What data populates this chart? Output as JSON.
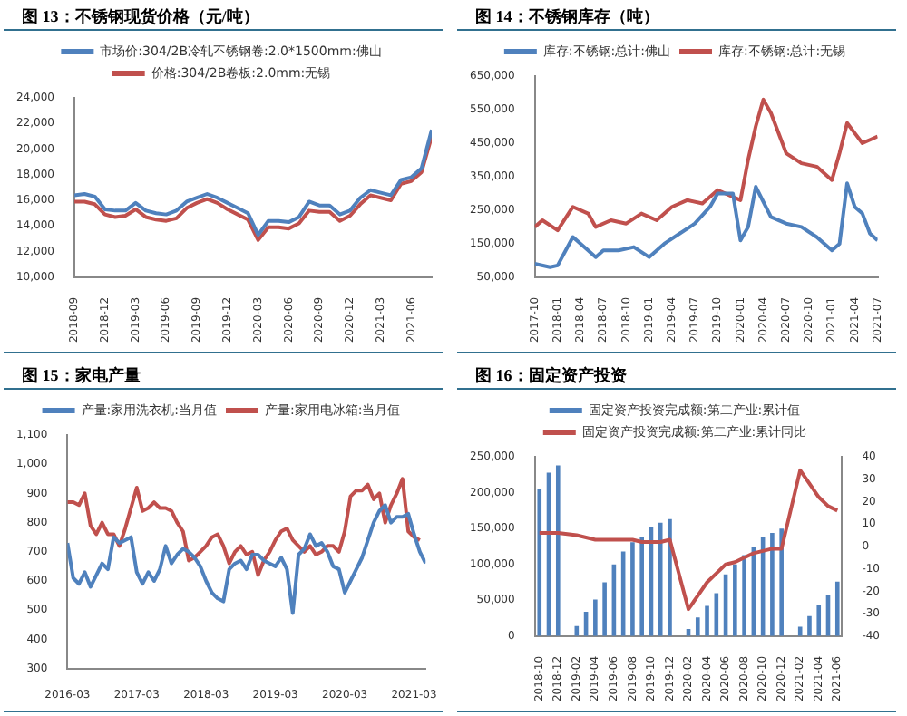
{
  "chart_data": [
    {
      "type": "line",
      "title": "图 13：不锈钢现货价格（元/吨）",
      "x": [
        "2018-09",
        "2018-10",
        "2018-11",
        "2018-12",
        "2019-01",
        "2019-02",
        "2019-03",
        "2019-04",
        "2019-05",
        "2019-06",
        "2019-07",
        "2019-08",
        "2019-09",
        "2019-10",
        "2019-11",
        "2019-12",
        "2020-01",
        "2020-02",
        "2020-03",
        "2020-04",
        "2020-05",
        "2020-06",
        "2020-07",
        "2020-08",
        "2020-09",
        "2020-10",
        "2020-11",
        "2020-12",
        "2021-01",
        "2021-02",
        "2021-03",
        "2021-04",
        "2021-05",
        "2021-06",
        "2021-07",
        "2021-08"
      ],
      "xlim": [
        "2018-09",
        "2021-08"
      ],
      "xticks": [
        "2018-09",
        "2018-12",
        "2019-03",
        "2019-06",
        "2019-09",
        "2019-12",
        "2020-03",
        "2020-06",
        "2020-09",
        "2020-12",
        "2021-03",
        "2021-06"
      ],
      "ylim": [
        10000,
        24000
      ],
      "yticks": [
        {
          "value": 10000,
          "label": "10,000"
        },
        {
          "value": 12000,
          "label": "12,000"
        },
        {
          "value": 14000,
          "label": "14,000"
        },
        {
          "value": 16000,
          "label": "16,000"
        },
        {
          "value": 18000,
          "label": "18,000"
        },
        {
          "value": 20000,
          "label": "20,000"
        },
        {
          "value": 22000,
          "label": "22,000"
        },
        {
          "value": 24000,
          "label": "24,000"
        }
      ],
      "legend": "top",
      "marker": "none",
      "series": [
        {
          "name": "市场价:304/2B冷轧不锈钢卷:2.0*1500mm:佛山",
          "color": "#4f81bd",
          "values": [
            16400,
            16500,
            16300,
            15300,
            15200,
            15200,
            15800,
            15200,
            15000,
            14900,
            15200,
            15900,
            16200,
            16500,
            16200,
            15800,
            15400,
            15000,
            13300,
            14400,
            14400,
            14300,
            14700,
            15900,
            15600,
            15600,
            14900,
            15200,
            16200,
            16800,
            16600,
            16400,
            17600,
            17800,
            18500,
            21500
          ]
        },
        {
          "name": "价格:304/2B卷板:2.0mm:无锡",
          "color": "#c0504d",
          "values": [
            15900,
            15900,
            15700,
            14900,
            14700,
            14800,
            15300,
            14700,
            14500,
            14400,
            14600,
            15400,
            15800,
            16100,
            15800,
            15300,
            14900,
            14500,
            12900,
            13900,
            13900,
            13800,
            14200,
            15200,
            15100,
            15100,
            14400,
            14800,
            15700,
            16400,
            16200,
            16000,
            17300,
            17500,
            18200,
            21000
          ]
        }
      ]
    },
    {
      "type": "line",
      "title": "图 14：不锈钢库存（吨）",
      "xlim": [
        "2017-10",
        "2021-07"
      ],
      "xticks": [
        "2017-10",
        "2018-01",
        "2018-04",
        "2018-07",
        "2018-10",
        "2019-01",
        "2019-04",
        "2019-07",
        "2019-10",
        "2020-01",
        "2020-04",
        "2020-07",
        "2020-10",
        "2021-01",
        "2021-04",
        "2021-07"
      ],
      "ylim": [
        50000,
        650000
      ],
      "yticks": [
        {
          "value": 50000,
          "label": "50,000"
        },
        {
          "value": 150000,
          "label": "150,000"
        },
        {
          "value": 250000,
          "label": "250,000"
        },
        {
          "value": 350000,
          "label": "350,000"
        },
        {
          "value": 450000,
          "label": "450,000"
        },
        {
          "value": 550000,
          "label": "550,000"
        },
        {
          "value": 650000,
          "label": "650,000"
        }
      ],
      "legend": "top",
      "marker": "none",
      "series": [
        {
          "name": "库存:不锈钢:总计:佛山",
          "color": "#4f81bd",
          "x": [
            "2017-10",
            "2017-12",
            "2018-01",
            "2018-03",
            "2018-05",
            "2018-06",
            "2018-07",
            "2018-09",
            "2018-11",
            "2019-01",
            "2019-03",
            "2019-05",
            "2019-07",
            "2019-09",
            "2019-10",
            "2019-12",
            "2020-01",
            "2020-02",
            "2020-03",
            "2020-05",
            "2020-07",
            "2020-09",
            "2020-11",
            "2021-01",
            "2021-02",
            "2021-03",
            "2021-04",
            "2021-05",
            "2021-06",
            "2021-07"
          ],
          "values": [
            90000,
            80000,
            85000,
            170000,
            130000,
            110000,
            130000,
            130000,
            140000,
            110000,
            150000,
            180000,
            210000,
            260000,
            300000,
            300000,
            160000,
            200000,
            320000,
            230000,
            210000,
            200000,
            170000,
            130000,
            150000,
            330000,
            260000,
            240000,
            180000,
            160000
          ]
        },
        {
          "name": "库存:不锈钢:总计:无锡",
          "color": "#c0504d",
          "x": [
            "2017-10",
            "2017-11",
            "2018-01",
            "2018-03",
            "2018-05",
            "2018-06",
            "2018-08",
            "2018-10",
            "2018-12",
            "2019-02",
            "2019-04",
            "2019-06",
            "2019-08",
            "2019-10",
            "2019-12",
            "2020-01",
            "2020-02",
            "2020-03",
            "2020-04",
            "2020-05",
            "2020-07",
            "2020-09",
            "2020-11",
            "2020-12",
            "2021-01",
            "2021-02",
            "2021-03",
            "2021-04",
            "2021-05",
            "2021-06",
            "2021-07"
          ],
          "values": [
            200000,
            220000,
            190000,
            260000,
            240000,
            200000,
            220000,
            210000,
            240000,
            220000,
            260000,
            280000,
            270000,
            310000,
            290000,
            280000,
            400000,
            500000,
            580000,
            540000,
            420000,
            390000,
            380000,
            360000,
            340000,
            420000,
            510000,
            480000,
            450000,
            460000,
            470000
          ]
        }
      ]
    },
    {
      "type": "line",
      "title": "图 15：家电产量",
      "x": [
        "2016-03",
        "2016-04",
        "2016-05",
        "2016-06",
        "2016-07",
        "2016-08",
        "2016-09",
        "2016-10",
        "2016-11",
        "2016-12",
        "2017-01",
        "2017-02",
        "2017-03",
        "2017-04",
        "2017-05",
        "2017-06",
        "2017-07",
        "2017-08",
        "2017-09",
        "2017-10",
        "2017-11",
        "2017-12",
        "2018-01",
        "2018-02",
        "2018-03",
        "2018-04",
        "2018-05",
        "2018-06",
        "2018-07",
        "2018-08",
        "2018-09",
        "2018-10",
        "2018-11",
        "2018-12",
        "2019-01",
        "2019-02",
        "2019-03",
        "2019-04",
        "2019-05",
        "2019-06",
        "2019-07",
        "2019-08",
        "2019-09",
        "2019-10",
        "2019-11",
        "2019-12",
        "2020-01",
        "2020-02",
        "2020-03",
        "2020-04",
        "2020-05",
        "2020-06",
        "2020-07",
        "2020-08",
        "2020-09",
        "2020-10",
        "2020-11",
        "2020-12",
        "2021-01",
        "2021-02",
        "2021-03",
        "2021-04",
        "2021-05"
      ],
      "xlim": [
        "2016-03",
        "2021-05"
      ],
      "xticks": [
        "2016-03",
        "2017-03",
        "2018-03",
        "2019-03",
        "2020-03",
        "2021-03"
      ],
      "ylim": [
        300,
        1100
      ],
      "yticks": [
        300,
        400,
        500,
        600,
        700,
        800,
        900,
        {
          "value": 1000,
          "label": "1,000"
        },
        {
          "value": 1100,
          "label": "1,100"
        }
      ],
      "legend": "top",
      "marker": "none",
      "series": [
        {
          "name": "产量:家用洗衣机:当月值",
          "color": "#4f81bd",
          "values": [
            730,
            610,
            590,
            630,
            580,
            620,
            660,
            640,
            750,
            730,
            740,
            750,
            630,
            590,
            630,
            600,
            640,
            720,
            660,
            690,
            710,
            700,
            680,
            650,
            600,
            560,
            540,
            530,
            640,
            660,
            670,
            640,
            690,
            690,
            670,
            660,
            650,
            680,
            640,
            490,
            690,
            710,
            760,
            720,
            730,
            700,
            650,
            640,
            560,
            600,
            640,
            680,
            740,
            800,
            840,
            860,
            800,
            820,
            820,
            830,
            760,
            700,
            660
          ]
        },
        {
          "name": "产量:家用电冰箱:当月值",
          "color": "#c0504d",
          "values": [
            870,
            870,
            860,
            900,
            790,
            760,
            800,
            760,
            760,
            720,
            780,
            850,
            920,
            840,
            850,
            870,
            850,
            850,
            840,
            800,
            770,
            670,
            680,
            700,
            720,
            750,
            760,
            720,
            660,
            700,
            720,
            690,
            700,
            620,
            670,
            700,
            740,
            770,
            780,
            740,
            720,
            700,
            720,
            690,
            700,
            720,
            720,
            700,
            770,
            890,
            910,
            910,
            930,
            880,
            900,
            800,
            860,
            900,
            950,
            770,
            750,
            740,
            null
          ]
        }
      ]
    },
    {
      "type": "bar",
      "title": "图 16：固定资产投资",
      "categories": [
        "2018-10",
        null,
        "2018-12",
        null,
        "2019-02",
        null,
        "2019-04",
        null,
        "2019-06",
        null,
        "2019-08",
        null,
        "2019-10",
        null,
        "2019-12",
        null,
        "2020-02",
        null,
        "2020-04",
        null,
        "2020-06",
        null,
        "2020-08",
        null,
        "2020-10",
        null,
        "2020-12",
        null,
        "2021-02",
        null,
        "2021-04",
        null,
        "2021-06"
      ],
      "ylim": [
        0,
        250000
      ],
      "yticks": [
        0,
        {
          "value": 50000,
          "label": "50,000"
        },
        {
          "value": 100000,
          "label": "100,000"
        },
        {
          "value": 150000,
          "label": "150,000"
        },
        {
          "value": 200000,
          "label": "200,000"
        },
        {
          "value": 250000,
          "label": "250,000"
        }
      ],
      "y2lim": [
        -40,
        40
      ],
      "y2ticks": [
        -40,
        -30,
        -20,
        -10,
        0,
        10,
        20,
        30,
        40
      ],
      "legend": "top",
      "marker": "none",
      "series": [
        {
          "name": "固定资产投资完成额:第二产业:累计值",
          "color": "#4f81bd",
          "type": "bar",
          "values": [
            205000,
            228000,
            238000,
            null,
            14000,
            34000,
            51000,
            75000,
            100000,
            118000,
            131000,
            138000,
            152000,
            158000,
            163000,
            null,
            10000,
            26000,
            42000,
            60000,
            86000,
            100000,
            113000,
            124000,
            138000,
            144000,
            150000,
            null,
            13000,
            28000,
            44000,
            58000,
            76000
          ]
        },
        {
          "name": "固定资产投资完成额:第二产业:累计同比",
          "color": "#c0504d",
          "type": "line",
          "axis": "y2",
          "values": [
            6,
            6,
            6,
            null,
            5,
            4,
            3,
            3,
            3,
            3,
            3,
            2,
            2,
            2,
            3,
            null,
            -28,
            -22,
            -16,
            -12,
            -8,
            -7,
            -5,
            -3,
            -2,
            -1,
            -1,
            null,
            34,
            28,
            22,
            18,
            16
          ]
        }
      ]
    }
  ]
}
